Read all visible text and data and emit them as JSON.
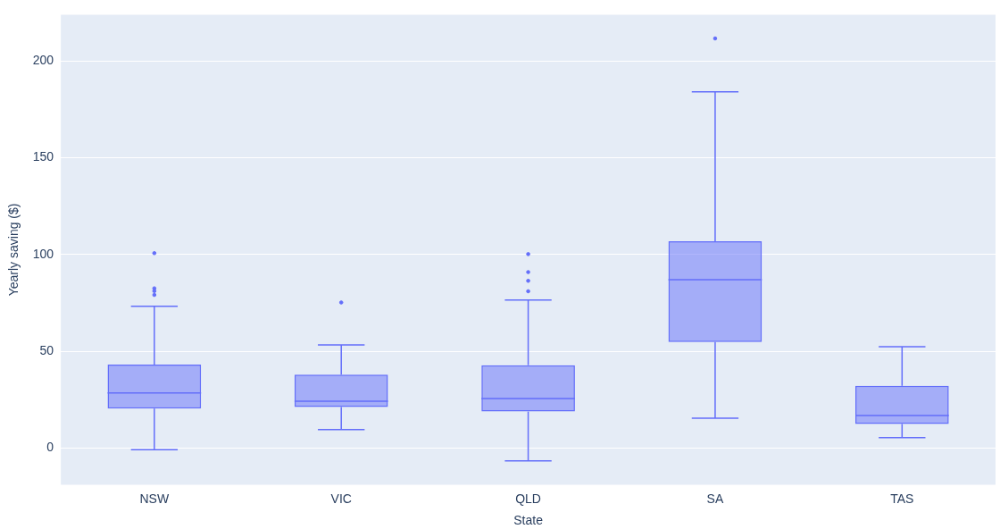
{
  "chart_data": {
    "type": "box",
    "xlabel": "State",
    "ylabel": "Yearly saving ($)",
    "categories": [
      "NSW",
      "VIC",
      "QLD",
      "SA",
      "TAS"
    ],
    "color": "#636efa",
    "boxes": [
      {
        "low": -0.9,
        "q1": 20.3,
        "median": 28.4,
        "q3": 43.1,
        "high": 73.2,
        "outliers": [
          100.7,
          82.5,
          81.1,
          79.1
        ]
      },
      {
        "low": 9.5,
        "q1": 21.2,
        "median": 24.1,
        "q3": 37.9,
        "high": 53.3,
        "outliers": [
          75.2
        ]
      },
      {
        "low": -6.7,
        "q1": 18.8,
        "median": 25.5,
        "q3": 42.8,
        "high": 76.5,
        "outliers": [
          100.2,
          90.9,
          86.4,
          81.0
        ]
      },
      {
        "low": 15.4,
        "q1": 54.8,
        "median": 87.0,
        "q3": 106.8,
        "high": 184.1,
        "outliers": [
          211.7
        ]
      },
      {
        "low": 5.3,
        "q1": 12.4,
        "median": 16.8,
        "q3": 32.1,
        "high": 52.3
      }
    ],
    "ylim": [
      -19,
      224
    ],
    "yticks": [
      0,
      50,
      100,
      150,
      200
    ],
    "grid": "y"
  }
}
